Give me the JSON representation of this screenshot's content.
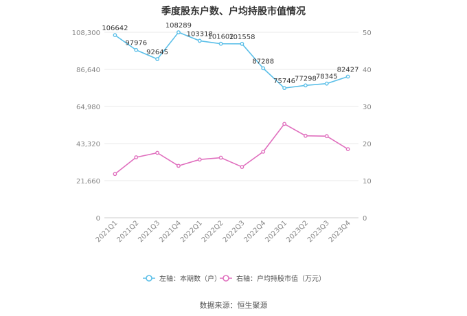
{
  "title": "季度股东户数、户均持股市值情况",
  "source": "数据来源：恒生聚源",
  "colors": {
    "left_series": "#5bbfe8",
    "right_series": "#e06fbe",
    "axis_text": "#888888",
    "grid": "#e8e8e8"
  },
  "chart_data": {
    "type": "line",
    "categories": [
      "2021Q1",
      "2021Q2",
      "2021Q3",
      "2021Q4",
      "2022Q1",
      "2022Q2",
      "2022Q3",
      "2022Q4",
      "2023Q1",
      "2023Q2",
      "2023Q3",
      "2023Q4"
    ],
    "left_axis": {
      "ticks": [
        "0",
        "21,660",
        "43,320",
        "64,980",
        "86,640",
        "108,300"
      ],
      "ylim": [
        0,
        108300
      ]
    },
    "right_axis": {
      "ticks": [
        "0",
        "10",
        "20",
        "30",
        "40",
        "50"
      ],
      "ylim": [
        0,
        50
      ]
    },
    "series": [
      {
        "name": "左轴：本期数（户）",
        "axis": "left",
        "values": [
          106642,
          97976,
          92645,
          108289,
          103318,
          101602,
          101558,
          87288,
          75746,
          77298,
          78345,
          82427
        ],
        "labels": [
          "106642",
          "97976",
          "92645",
          "108289",
          "103318",
          "101602",
          "101558",
          "87288",
          "75746",
          "77298",
          "78345",
          "82427"
        ]
      },
      {
        "name": "右轴：户均持股市值（万元）",
        "axis": "right",
        "values": [
          11.8,
          16.3,
          17.5,
          14.0,
          15.7,
          16.2,
          13.7,
          17.8,
          25.3,
          22.1,
          22.0,
          18.5
        ]
      }
    ],
    "legend_position": "bottom",
    "grid": true
  }
}
